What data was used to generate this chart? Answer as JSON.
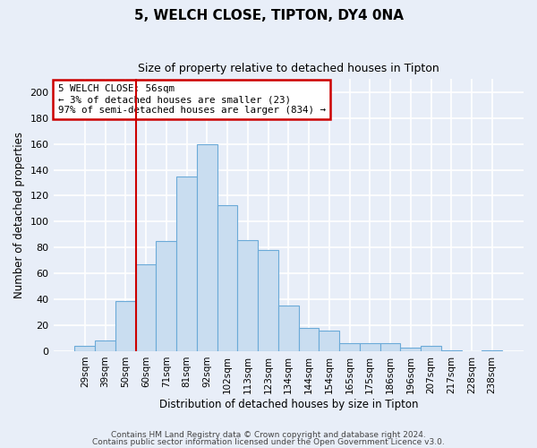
{
  "title": "5, WELCH CLOSE, TIPTON, DY4 0NA",
  "subtitle": "Size of property relative to detached houses in Tipton",
  "xlabel": "Distribution of detached houses by size in Tipton",
  "ylabel": "Number of detached properties",
  "bar_labels": [
    "29sqm",
    "39sqm",
    "50sqm",
    "60sqm",
    "71sqm",
    "81sqm",
    "92sqm",
    "102sqm",
    "113sqm",
    "123sqm",
    "134sqm",
    "144sqm",
    "154sqm",
    "165sqm",
    "175sqm",
    "186sqm",
    "196sqm",
    "207sqm",
    "217sqm",
    "228sqm",
    "238sqm"
  ],
  "bar_values": [
    4,
    8,
    39,
    67,
    85,
    135,
    160,
    113,
    86,
    78,
    35,
    18,
    16,
    6,
    6,
    6,
    3,
    4,
    1,
    0,
    1
  ],
  "bar_color": "#c9ddf0",
  "bar_edge_color": "#6baad8",
  "property_line_label": "5 WELCH CLOSE: 56sqm",
  "annotation_line1": "← 3% of detached houses are smaller (23)",
  "annotation_line2": "97% of semi-detached houses are larger (834) →",
  "annotation_box_color": "#ffffff",
  "annotation_box_edgecolor": "#cc0000",
  "vline_color": "#cc0000",
  "vline_x_index": 2.5,
  "ylim": [
    0,
    210
  ],
  "yticks": [
    0,
    20,
    40,
    60,
    80,
    100,
    120,
    140,
    160,
    180,
    200
  ],
  "footer1": "Contains HM Land Registry data © Crown copyright and database right 2024.",
  "footer2": "Contains public sector information licensed under the Open Government Licence v3.0.",
  "bg_color": "#e8eef8",
  "plot_bg_color": "#e8eef8",
  "grid_color": "#ffffff"
}
